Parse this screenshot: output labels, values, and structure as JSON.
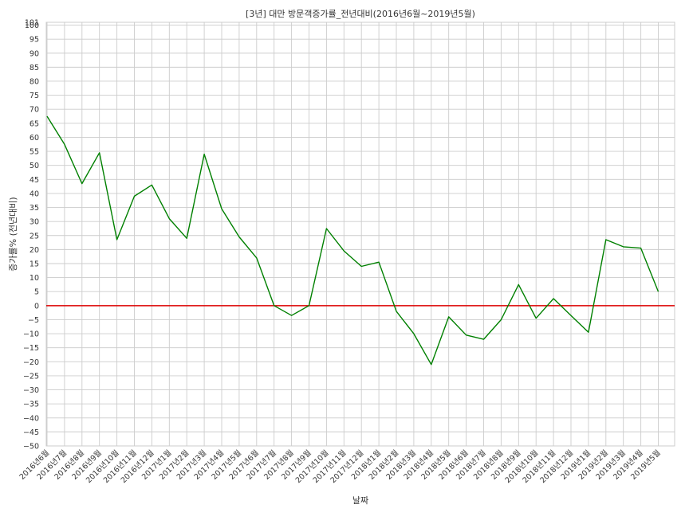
{
  "chart_data": {
    "type": "line",
    "title": "[3년] 대만 방문객증가률_전년대비(2016년6월~2019년5월)",
    "xlabel": "날짜",
    "ylabel": "증가률% (전년대비)",
    "categories": [
      "2016년6월",
      "2016년7월",
      "2016년8월",
      "2016년9월",
      "2016년10월",
      "2016년11월",
      "2016년12월",
      "2017년1월",
      "2017년2월",
      "2017년3월",
      "2017년4월",
      "2017년5월",
      "2017년6월",
      "2017년7월",
      "2017년8월",
      "2017년9월",
      "2017년10월",
      "2017년11월",
      "2017년12월",
      "2018년1월",
      "2018년2월",
      "2018년3월",
      "2018년4월",
      "2018년5월",
      "2018년6월",
      "2018년7월",
      "2018년8월",
      "2018년9월",
      "2018년10월",
      "2018년11월",
      "2018년12월",
      "2019년1월",
      "2019년2월",
      "2019년3월",
      "2019년4월",
      "2019년5월"
    ],
    "series": [
      {
        "values": [
          67.5,
          57.5,
          43.5,
          54.5,
          23.5,
          39,
          43,
          31,
          24,
          54,
          34.5,
          24.5,
          17,
          0,
          -3.5,
          0,
          27.5,
          19.5,
          14,
          15.5,
          -2,
          -10,
          -21,
          -4,
          -10.5,
          -12,
          -5,
          7.5,
          -4.5,
          2.5,
          -3.5,
          -9.5,
          23.5,
          21,
          20.5,
          5
        ],
        "color": "#008000"
      }
    ],
    "reference_line": {
      "y": 0,
      "color": "#dd0000"
    },
    "ylim": [
      -50,
      101
    ],
    "yticks": [
      "101",
      "100",
      "95",
      "90",
      "85",
      "80",
      "75",
      "70",
      "65",
      "60",
      "55",
      "50",
      "45",
      "40",
      "35",
      "30",
      "25",
      "20",
      "15",
      "10",
      "5",
      "0",
      "−5",
      "−10",
      "−15",
      "−20",
      "−25",
      "−30",
      "−35",
      "−40",
      "−45",
      "−50"
    ],
    "grid": true,
    "legend": "none"
  }
}
